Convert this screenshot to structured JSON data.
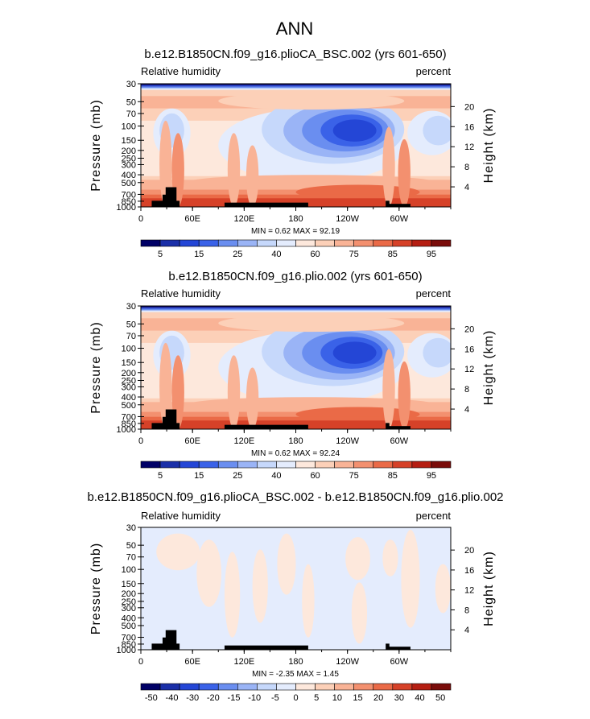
{
  "title": "ANN",
  "colors": {
    "land": "#000000",
    "frame": "#000000",
    "abs_scale": [
      "#000066",
      "#1a2fa8",
      "#2446d6",
      "#3a62e8",
      "#6a8ef0",
      "#9ab4f6",
      "#c6d8fb",
      "#e4ecfd",
      "#fde8dc",
      "#fcd0b8",
      "#f9b396",
      "#f3906f",
      "#ea6a47",
      "#d64128",
      "#b51e12",
      "#7a0c0a"
    ],
    "diff_scale": [
      "#000066",
      "#1a2fa8",
      "#2446d6",
      "#3a62e8",
      "#6a8ef0",
      "#9ab4f6",
      "#c6d8fb",
      "#e4ecfd",
      "#fde8dc",
      "#fcd0b8",
      "#f9b396",
      "#f3906f",
      "#ea6a47",
      "#d64128",
      "#b51e12",
      "#7a0c0a"
    ]
  },
  "panels": [
    {
      "title": "b.e12.B1850CN.f09_g16.plioCA_BSC.002 (yrs 601-650)",
      "variable": "Relative humidity",
      "units": "percent",
      "stats": "MIN =    0.62  MAX =   92.19"
    },
    {
      "title": "b.e12.B1850CN.f09_g16.plio.002 (yrs 601-650)",
      "variable": "Relative humidity",
      "units": "percent",
      "stats": "MIN =    0.62  MAX =   92.24"
    },
    {
      "title": "b.e12.B1850CN.f09_g16.plioCA_BSC.002 - b.e12.B1850CN.f09_g16.plio.002",
      "variable": "Relative humidity",
      "units": "percent",
      "stats": "MIN =   -2.35  MAX =    1.45"
    }
  ],
  "chart_data": [
    {
      "type": "heatmap",
      "title": "b.e12.B1850CN.f09_g16.plioCA_BSC.002 (yrs 601-650)",
      "xlabel": "",
      "ylabel": "Pressure (mb)",
      "y2label": "Height (km)",
      "x_ticks": [
        "0",
        "60E",
        "120E",
        "180",
        "120W",
        "60W"
      ],
      "x_tick_values": [
        0,
        60,
        120,
        180,
        240,
        300
      ],
      "xlim": [
        0,
        360
      ],
      "y_ticks": [
        "1000",
        "850",
        "700",
        "500",
        "400",
        "300",
        "250",
        "200",
        "150",
        "100",
        "70",
        "50",
        "30"
      ],
      "y_tick_values": [
        1000,
        850,
        700,
        500,
        400,
        300,
        250,
        200,
        150,
        100,
        70,
        50,
        30
      ],
      "ylim": [
        1000,
        30
      ],
      "y_scale": "log",
      "y2_ticks": [
        "4",
        "8",
        "12",
        "16",
        "20"
      ],
      "contour_levels": [
        5,
        10,
        15,
        20,
        25,
        30,
        40,
        50,
        60,
        65,
        70,
        75,
        80,
        85,
        90,
        95
      ],
      "colorbar_labels": [
        "5",
        "15",
        "25",
        "40",
        "60",
        "75",
        "85",
        "95"
      ],
      "min": 0.62,
      "max": 92.19
    },
    {
      "type": "heatmap",
      "title": "b.e12.B1850CN.f09_g16.plio.002 (yrs 601-650)",
      "xlabel": "",
      "ylabel": "Pressure (mb)",
      "y2label": "Height (km)",
      "x_ticks": [
        "0",
        "60E",
        "120E",
        "180",
        "120W",
        "60W"
      ],
      "x_tick_values": [
        0,
        60,
        120,
        180,
        240,
        300
      ],
      "xlim": [
        0,
        360
      ],
      "y_ticks": [
        "1000",
        "850",
        "700",
        "500",
        "400",
        "300",
        "250",
        "200",
        "150",
        "100",
        "70",
        "50",
        "30"
      ],
      "y_tick_values": [
        1000,
        850,
        700,
        500,
        400,
        300,
        250,
        200,
        150,
        100,
        70,
        50,
        30
      ],
      "ylim": [
        1000,
        30
      ],
      "y_scale": "log",
      "y2_ticks": [
        "4",
        "8",
        "12",
        "16",
        "20"
      ],
      "contour_levels": [
        5,
        10,
        15,
        20,
        25,
        30,
        40,
        50,
        60,
        65,
        70,
        75,
        80,
        85,
        90,
        95
      ],
      "colorbar_labels": [
        "5",
        "15",
        "25",
        "40",
        "60",
        "75",
        "85",
        "95"
      ],
      "min": 0.62,
      "max": 92.24
    },
    {
      "type": "heatmap",
      "title": "b.e12.B1850CN.f09_g16.plioCA_BSC.002 - b.e12.B1850CN.f09_g16.plio.002",
      "xlabel": "",
      "ylabel": "Pressure (mb)",
      "y2label": "Height (km)",
      "x_ticks": [
        "0",
        "60E",
        "120E",
        "180",
        "120W",
        "60W"
      ],
      "x_tick_values": [
        0,
        60,
        120,
        180,
        240,
        300
      ],
      "xlim": [
        0,
        360
      ],
      "y_ticks": [
        "1000",
        "850",
        "700",
        "500",
        "400",
        "300",
        "250",
        "200",
        "150",
        "100",
        "70",
        "50",
        "30"
      ],
      "y_tick_values": [
        1000,
        850,
        700,
        500,
        400,
        300,
        250,
        200,
        150,
        100,
        70,
        50,
        30
      ],
      "ylim": [
        1000,
        30
      ],
      "y_scale": "log",
      "y2_ticks": [
        "4",
        "8",
        "12",
        "16",
        "20"
      ],
      "contour_levels": [
        -50,
        -40,
        -30,
        -20,
        -15,
        -10,
        -5,
        0,
        5,
        10,
        15,
        20,
        30,
        40,
        50
      ],
      "colorbar_labels": [
        "-50",
        "-40",
        "-30",
        "-20",
        "-15",
        "-10",
        "-5",
        "0",
        "5",
        "10",
        "15",
        "20",
        "30",
        "40",
        "50"
      ],
      "min": -2.35,
      "max": 1.45
    }
  ]
}
